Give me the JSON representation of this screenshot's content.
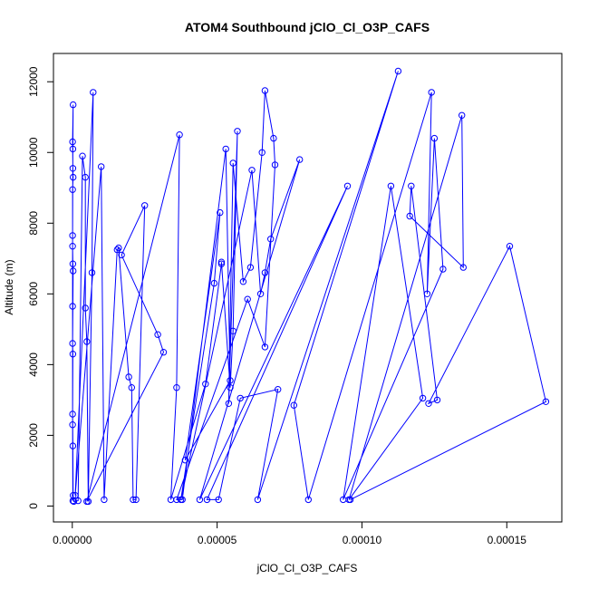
{
  "chart_data": {
    "type": "line",
    "title": "ATOM4 Southbound jClO_Cl_O3P_CAFS",
    "xlabel": "jClO_Cl_O3P_CAFS",
    "ylabel": "Altitude (m)",
    "xlim": [
      -6.5e-06,
      0.000169
    ],
    "ylim": [
      -450,
      12800
    ],
    "x_ticks": [
      0,
      5e-05,
      0.0001,
      0.00015
    ],
    "x_tick_labels": [
      "0.00000",
      "0.00005",
      "0.00010",
      "0.00015"
    ],
    "y_ticks": [
      0,
      2000,
      4000,
      6000,
      8000,
      10000,
      12000
    ],
    "y_tick_labels": [
      "0",
      "2000",
      "4000",
      "6000",
      "8000",
      "10000",
      "12000"
    ],
    "grid": false,
    "series": [
      {
        "color": "#0000ff",
        "points": [
          [
            2e-07,
            150
          ],
          [
            1e-07,
            2300
          ],
          [
            1e-07,
            5650
          ],
          [
            1e-07,
            7650
          ],
          [
            2e-07,
            10100
          ],
          [
            3e-07,
            11350
          ],
          [
            1e-07,
            10300
          ],
          [
            2e-07,
            9550
          ],
          [
            3e-07,
            9300
          ],
          [
            1e-07,
            8950
          ],
          [
            1e-07,
            7350
          ],
          [
            2e-07,
            6850
          ],
          [
            3e-07,
            6650
          ],
          [
            1e-07,
            4600
          ],
          [
            2e-07,
            4300
          ],
          [
            1e-07,
            2600
          ],
          [
            2e-07,
            1700
          ],
          [
            3e-07,
            300
          ],
          [
            5e-07,
            130
          ],
          [
            2e-06,
            150
          ],
          [
            3.5e-06,
            9900
          ],
          [
            4.5e-06,
            9300
          ],
          [
            4.5e-06,
            5600
          ],
          [
            5e-06,
            4650
          ],
          [
            5.5e-06,
            130
          ],
          [
            6.8e-06,
            6600
          ],
          [
            7.2e-06,
            11700
          ],
          [
            1e-06,
            300
          ],
          [
            1e-05,
            9600
          ],
          [
            1.1e-05,
            180
          ],
          [
            1.55e-05,
            7250
          ],
          [
            1.6e-05,
            7300
          ],
          [
            1.95e-05,
            3650
          ],
          [
            2.05e-05,
            3350
          ],
          [
            2.1e-05,
            180
          ],
          [
            2.2e-05,
            180
          ],
          [
            2.5e-05,
            8500
          ],
          [
            1.7e-05,
            7100
          ],
          [
            2.95e-05,
            4850
          ],
          [
            3.15e-05,
            4350
          ],
          [
            5e-06,
            130
          ],
          [
            3.7e-05,
            10500
          ],
          [
            3.6e-05,
            3350
          ],
          [
            3.4e-05,
            180
          ],
          [
            4.6e-05,
            3450
          ],
          [
            5.15e-05,
            6850
          ],
          [
            5.15e-05,
            6900
          ],
          [
            5.45e-05,
            3350
          ],
          [
            5.55e-05,
            4950
          ],
          [
            5.7e-05,
            10600
          ],
          [
            5.4e-05,
            2900
          ],
          [
            5.55e-05,
            9700
          ],
          [
            5.9e-05,
            6350
          ],
          [
            6.15e-05,
            6750
          ],
          [
            6.55e-05,
            10000
          ],
          [
            6.65e-05,
            11750
          ],
          [
            6.95e-05,
            10400
          ],
          [
            7e-05,
            9650
          ],
          [
            6.65e-05,
            4500
          ],
          [
            6.05e-05,
            5850
          ],
          [
            3.6e-05,
            180
          ],
          [
            3.8e-05,
            180
          ],
          [
            5.3e-05,
            10100
          ],
          [
            5.45e-05,
            3550
          ],
          [
            3.9e-05,
            1300
          ],
          [
            5.1e-05,
            8300
          ],
          [
            4.9e-05,
            6300
          ],
          [
            3.75e-05,
            180
          ],
          [
            6.2e-05,
            9500
          ],
          [
            6.5e-05,
            6000
          ],
          [
            6.65e-05,
            6600
          ],
          [
            6.85e-05,
            7550
          ],
          [
            7.85e-05,
            9800
          ],
          [
            4.4e-05,
            180
          ],
          [
            9.5e-05,
            9050
          ],
          [
            4.65e-05,
            180
          ],
          [
            5.05e-05,
            180
          ],
          [
            5.8e-05,
            3050
          ],
          [
            7.1e-05,
            3300
          ],
          [
            6.4e-05,
            180
          ],
          [
            0.0001125,
            12300
          ],
          [
            7.65e-05,
            2850
          ],
          [
            8.15e-05,
            180
          ],
          [
            0.000124,
            11700
          ],
          [
            0.0001225,
            6000
          ],
          [
            0.000125,
            10400
          ],
          [
            0.000128,
            6700
          ],
          [
            9.35e-05,
            180
          ],
          [
            0.00011,
            9050
          ],
          [
            0.000121,
            3050
          ],
          [
            9.55e-05,
            180
          ],
          [
            0.0001345,
            11050
          ],
          [
            0.000135,
            6750
          ],
          [
            0.0001165,
            8200
          ],
          [
            0.000117,
            9050
          ],
          [
            0.000126,
            3000
          ],
          [
            0.000123,
            2900
          ],
          [
            0.000151,
            7350
          ],
          [
            0.0001635,
            2950
          ],
          [
            9.6e-05,
            180
          ]
        ]
      }
    ]
  }
}
